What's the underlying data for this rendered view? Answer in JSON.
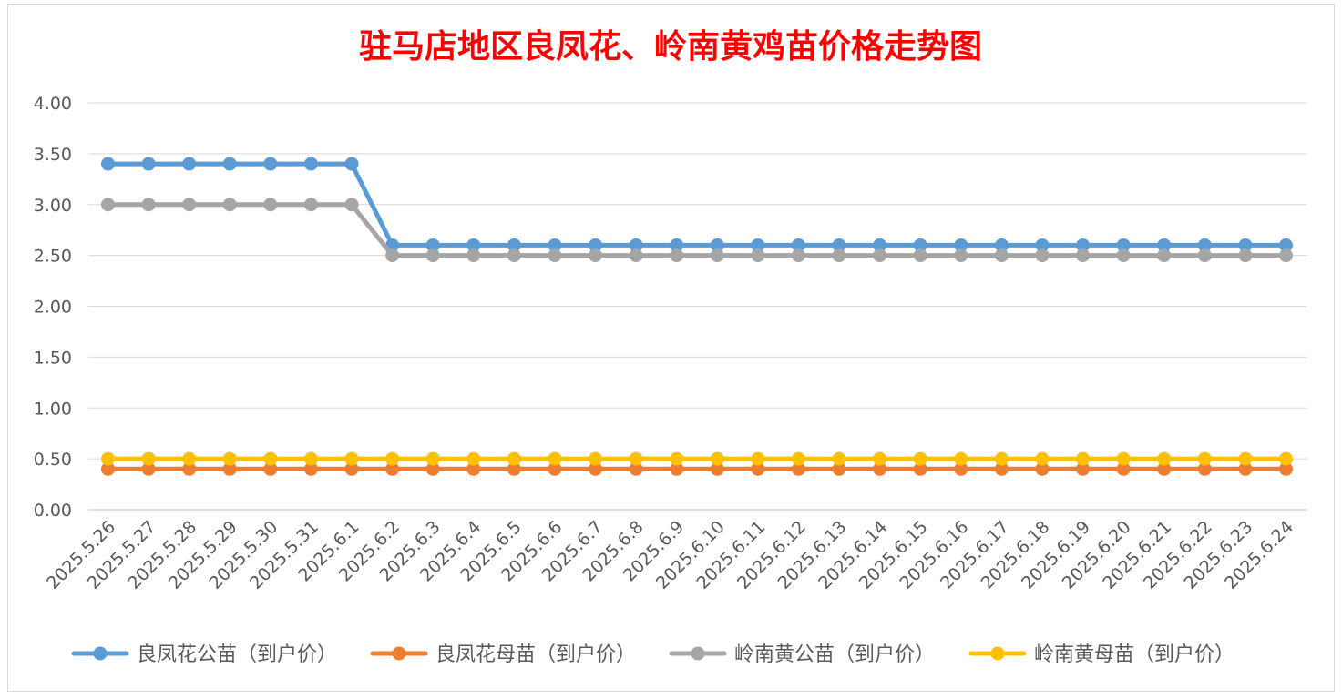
{
  "chart_data": {
    "type": "line",
    "title": "驻马店地区良凤花、岭南黄鸡苗价格走势图",
    "xlabel": "",
    "ylabel": "",
    "ylim": [
      0,
      4
    ],
    "y_ticks": [
      "0.00",
      "0.50",
      "1.00",
      "1.50",
      "2.00",
      "2.50",
      "3.00",
      "3.50",
      "4.00"
    ],
    "grid": true,
    "legend_position": "bottom",
    "categories": [
      "2025.5.26",
      "2025.5.27",
      "2025.5.28",
      "2025.5.29",
      "2025.5.30",
      "2025.5.31",
      "2025.6.1",
      "2025.6.2",
      "2025.6.3",
      "2025.6.4",
      "2025.6.5",
      "2025.6.6",
      "2025.6.7",
      "2025.6.8",
      "2025.6.9",
      "2025.6.10",
      "2025.6.11",
      "2025.6.12",
      "2025.6.13",
      "2025.6.14",
      "2025.6.15",
      "2025.6.16",
      "2025.6.17",
      "2025.6.18",
      "2025.6.19",
      "2025.6.20",
      "2025.6.21",
      "2025.6.22",
      "2025.6.23",
      "2025.6.24"
    ],
    "series": [
      {
        "name": "良凤花公苗（到户价）",
        "color": "#5B9BD5",
        "values": [
          3.4,
          3.4,
          3.4,
          3.4,
          3.4,
          3.4,
          3.4,
          2.6,
          2.6,
          2.6,
          2.6,
          2.6,
          2.6,
          2.6,
          2.6,
          2.6,
          2.6,
          2.6,
          2.6,
          2.6,
          2.6,
          2.6,
          2.6,
          2.6,
          2.6,
          2.6,
          2.6,
          2.6,
          2.6,
          2.6
        ]
      },
      {
        "name": "良凤花母苗（到户价）",
        "color": "#ED7D31",
        "values": [
          0.4,
          0.4,
          0.4,
          0.4,
          0.4,
          0.4,
          0.4,
          0.4,
          0.4,
          0.4,
          0.4,
          0.4,
          0.4,
          0.4,
          0.4,
          0.4,
          0.4,
          0.4,
          0.4,
          0.4,
          0.4,
          0.4,
          0.4,
          0.4,
          0.4,
          0.4,
          0.4,
          0.4,
          0.4,
          0.4
        ]
      },
      {
        "name": "岭南黄公苗（到户价）",
        "color": "#A5A5A5",
        "values": [
          3.0,
          3.0,
          3.0,
          3.0,
          3.0,
          3.0,
          3.0,
          2.5,
          2.5,
          2.5,
          2.5,
          2.5,
          2.5,
          2.5,
          2.5,
          2.5,
          2.5,
          2.5,
          2.5,
          2.5,
          2.5,
          2.5,
          2.5,
          2.5,
          2.5,
          2.5,
          2.5,
          2.5,
          2.5,
          2.5
        ]
      },
      {
        "name": "岭南黄母苗（到户价）",
        "color": "#FFC000",
        "values": [
          0.5,
          0.5,
          0.5,
          0.5,
          0.5,
          0.5,
          0.5,
          0.5,
          0.5,
          0.5,
          0.5,
          0.5,
          0.5,
          0.5,
          0.5,
          0.5,
          0.5,
          0.5,
          0.5,
          0.5,
          0.5,
          0.5,
          0.5,
          0.5,
          0.5,
          0.5,
          0.5,
          0.5,
          0.5,
          0.5
        ]
      }
    ],
    "colors": {
      "title": "#FF0000",
      "grid": "#D9D9D9",
      "axis_text": "#595959",
      "axis_line": "#BFBFBF"
    }
  }
}
